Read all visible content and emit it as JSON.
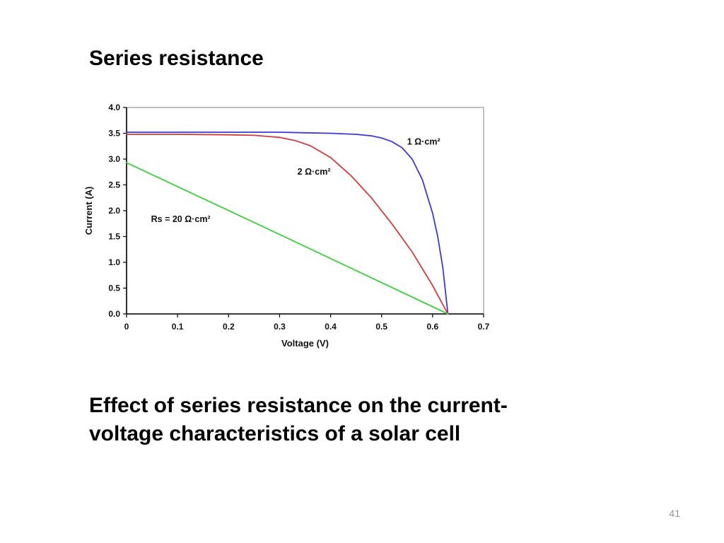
{
  "slide": {
    "title": "Series resistance",
    "caption_lines": [
      "Effect of series resistance on the current-",
      "voltage characteristics of a solar cell"
    ],
    "page_number": "41"
  },
  "chart_data": {
    "type": "line",
    "title": "",
    "xlabel": "Voltage (V)",
    "ylabel": "Current (A)",
    "xlim": [
      0,
      0.7
    ],
    "ylim": [
      0,
      4.0
    ],
    "grid": false,
    "legend": "inline-labels",
    "x_ticks": [
      0,
      0.1,
      0.2,
      0.3,
      0.4,
      0.5,
      0.6,
      0.7
    ],
    "x_tick_labels": [
      "0",
      "0.1",
      "0.2",
      "0.3",
      "0.4",
      "0.5",
      "0.6",
      "0.7"
    ],
    "y_ticks": [
      0,
      0.5,
      1.0,
      1.5,
      2.0,
      2.5,
      3.0,
      3.5,
      4.0
    ],
    "y_tick_labels": [
      "0.0",
      "0.5",
      "1.0",
      "1.5",
      "2.0",
      "2.5",
      "3.0",
      "3.5",
      "4.0"
    ],
    "series": [
      {
        "id": "rs-1-ohm",
        "name": "1 Ω·cm²",
        "color": "#3b3bd0",
        "points": [
          [
            0,
            3.52
          ],
          [
            0.1,
            3.52
          ],
          [
            0.2,
            3.52
          ],
          [
            0.3,
            3.52
          ],
          [
            0.35,
            3.51
          ],
          [
            0.4,
            3.5
          ],
          [
            0.45,
            3.48
          ],
          [
            0.48,
            3.45
          ],
          [
            0.5,
            3.41
          ],
          [
            0.52,
            3.34
          ],
          [
            0.54,
            3.22
          ],
          [
            0.56,
            3.0
          ],
          [
            0.58,
            2.6
          ],
          [
            0.6,
            1.95
          ],
          [
            0.61,
            1.5
          ],
          [
            0.62,
            0.9
          ],
          [
            0.63,
            0.0
          ]
        ]
      },
      {
        "id": "rs-2-ohm",
        "name": "2 Ω·cm²",
        "color": "#d03b3b",
        "points": [
          [
            0,
            3.48
          ],
          [
            0.1,
            3.48
          ],
          [
            0.2,
            3.47
          ],
          [
            0.25,
            3.46
          ],
          [
            0.3,
            3.42
          ],
          [
            0.33,
            3.36
          ],
          [
            0.36,
            3.26
          ],
          [
            0.4,
            3.03
          ],
          [
            0.44,
            2.68
          ],
          [
            0.48,
            2.25
          ],
          [
            0.52,
            1.75
          ],
          [
            0.56,
            1.2
          ],
          [
            0.6,
            0.55
          ],
          [
            0.63,
            0.0
          ]
        ]
      },
      {
        "id": "rs-20-ohm",
        "name": "Rs = 20 Ω·cm²",
        "color": "#3bd03b",
        "points": [
          [
            0,
            2.93
          ],
          [
            0.315,
            1.47
          ],
          [
            0.63,
            0.0
          ]
        ]
      }
    ],
    "annotations": [
      {
        "text": "1 Ω·cm²",
        "x": 0.55,
        "y": 3.28,
        "color": "#111111"
      },
      {
        "text": "2 Ω·cm²",
        "x": 0.335,
        "y": 2.7,
        "color": "#111111"
      },
      {
        "text": "Rs = 20 Ω·cm²",
        "x": 0.048,
        "y": 1.78,
        "color": "#111111"
      }
    ],
    "colors": {
      "axis": "#000000",
      "frame": "#9a9a9a"
    }
  }
}
